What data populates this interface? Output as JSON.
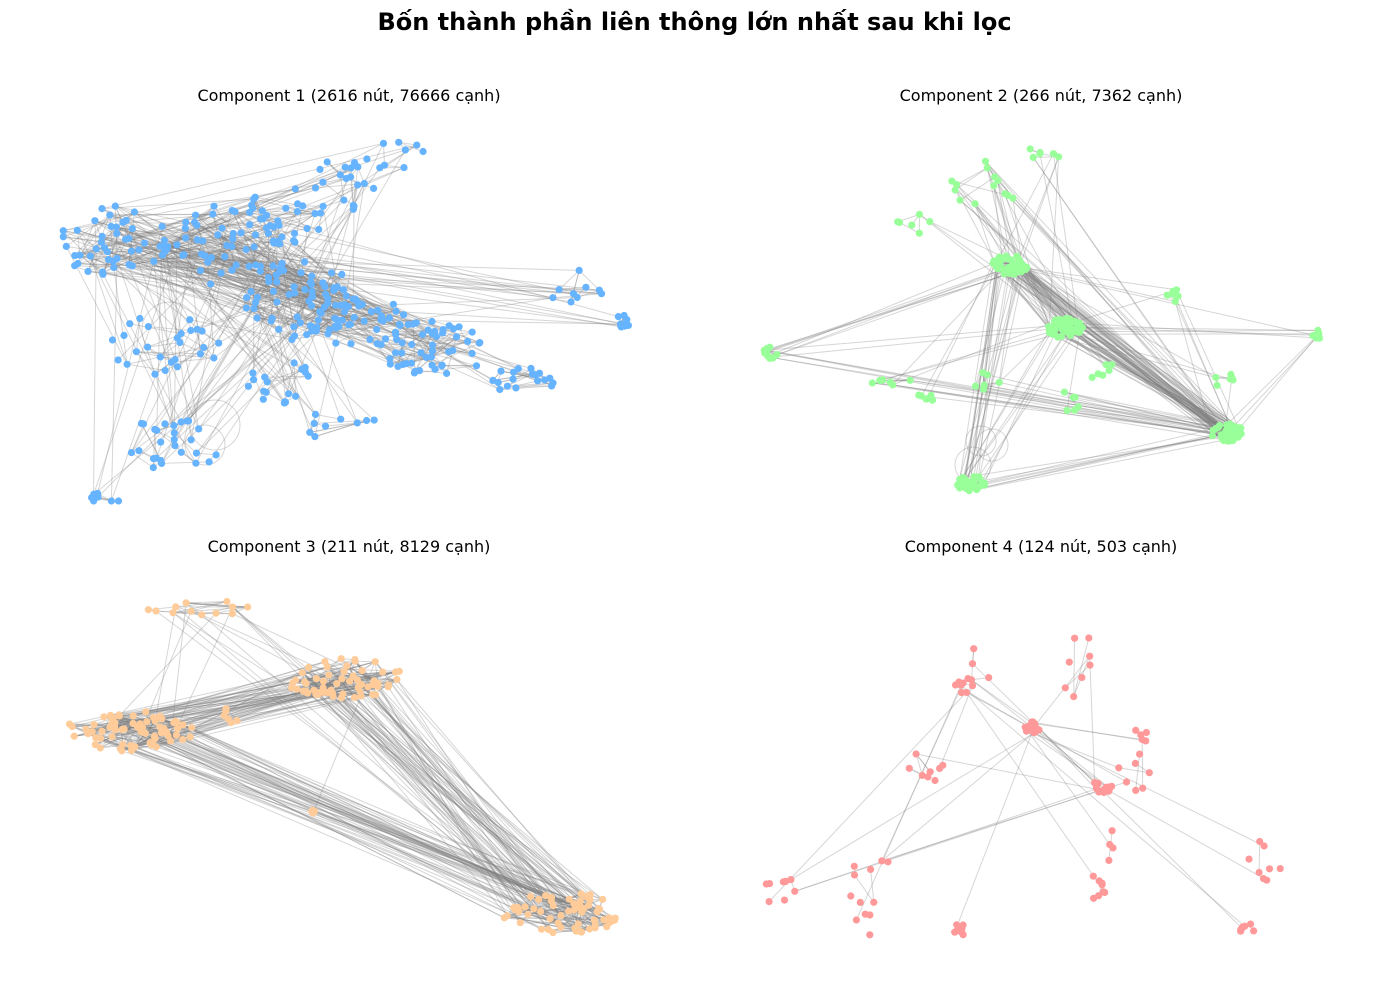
{
  "title": "Bốn thành phần liên thông lớn nhất sau khi lọc",
  "edge_color": "#808080",
  "components": [
    {
      "label": "Component 1 (2616 nút, 76666 cạnh)",
      "nodes": 2616,
      "edges": 76666,
      "color": "#66b3ff"
    },
    {
      "label": "Component 2 (266 nút, 7362 cạnh)",
      "nodes": 266,
      "edges": 7362,
      "color": "#99ff99"
    },
    {
      "label": "Component 3 (211 nút, 8129 cạnh)",
      "nodes": 211,
      "edges": 8129,
      "color": "#ffcc99"
    },
    {
      "label": "Component 4 (124 nút, 503 cạnh)",
      "nodes": 124,
      "edges": 503,
      "color": "#ff9999"
    }
  ]
}
